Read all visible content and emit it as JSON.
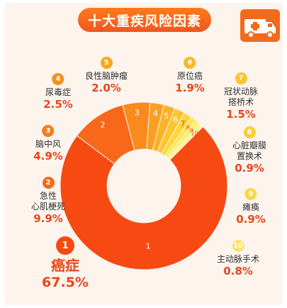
{
  "header": {
    "title": "十大重疾风险因素"
  },
  "icons": {
    "top_right": "ambulance-icon"
  },
  "chart_data": {
    "type": "pie",
    "title": "十大重疾风险因素",
    "categories": [
      "癌症",
      "急性心肌梗死",
      "脑中风",
      "尿毒症",
      "良性脑肿瘤",
      "原位癌",
      "冠状动脉搭桥术",
      "心脏瓣膜置换术",
      "瘫痪",
      "主动脉手术"
    ],
    "series": [
      {
        "values": [
          67.5,
          9.9,
          4.9,
          2.5,
          2.0,
          1.9,
          1.5,
          0.9,
          0.9,
          0.8
        ]
      }
    ],
    "units": "%",
    "inner_radius_ratio": 0.44
  },
  "labels": [
    {
      "num": "1",
      "lines": [
        "癌症"
      ],
      "pct": "67.5%"
    },
    {
      "num": "2",
      "lines": [
        "急性",
        "心肌梗死"
      ],
      "pct": "9.9%"
    },
    {
      "num": "3",
      "lines": [
        "脑中风"
      ],
      "pct": "4.9%"
    },
    {
      "num": "4",
      "lines": [
        "尿毒症"
      ],
      "pct": "2.5%"
    },
    {
      "num": "5",
      "lines": [
        "良性脑肿瘤"
      ],
      "pct": "2.0%"
    },
    {
      "num": "6",
      "lines": [
        "原位癌"
      ],
      "pct": "1.9%"
    },
    {
      "num": "7",
      "lines": [
        "冠状动脉",
        "搭桥术"
      ],
      "pct": "1.5%"
    },
    {
      "num": "8",
      "lines": [
        "心脏瓣膜",
        "置换术"
      ],
      "pct": "0.9%"
    },
    {
      "num": "9",
      "lines": [
        "瘫痪"
      ],
      "pct": "0.9%"
    },
    {
      "num": "10",
      "lines": [
        "主动脉手术"
      ],
      "pct": "0.8%"
    }
  ],
  "colors": {
    "slices": [
      "#f64a12",
      "#f7681a",
      "#fa8a1e",
      "#fb9f22",
      "#fcb226",
      "#fdc62f",
      "#fed63a",
      "#fee54d",
      "#fef06a",
      "#fff59a"
    ],
    "circles": [
      "#f64a12",
      "#f7681a",
      "#f97a1c",
      "#fb9018",
      "#fba61c",
      "#fbb72a",
      "#fbc432",
      "#f9d030",
      "#f9d842",
      "#fbe170"
    ]
  }
}
